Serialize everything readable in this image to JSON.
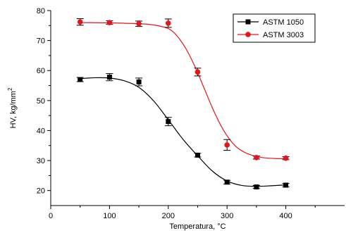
{
  "chart_data": {
    "type": "scatter",
    "title": "",
    "xlabel": "Temperatura, °C",
    "ylabel": "HV, kg/mm",
    "ylabel_superscript": "2",
    "xlim": [
      0,
      500
    ],
    "ylim": [
      15,
      80
    ],
    "xticks": [
      0,
      100,
      200,
      300,
      400
    ],
    "yticks": [
      20,
      30,
      40,
      50,
      60,
      70,
      80
    ],
    "grid": false,
    "legend_position": "top-right",
    "series": [
      {
        "name": "ASTM 1050",
        "color": "#000000",
        "marker": "square",
        "x": [
          50,
          100,
          150,
          200,
          250,
          300,
          350,
          400
        ],
        "y": [
          57.0,
          57.8,
          56.2,
          43.0,
          31.8,
          22.8,
          21.2,
          21.8
        ],
        "err": [
          0.7,
          1.2,
          1.3,
          1.4,
          0.6,
          0.6,
          0.5,
          0.6
        ],
        "fit_x": [
          50,
          75,
          100,
          125,
          150,
          175,
          200,
          225,
          250,
          275,
          300,
          325,
          350,
          375,
          400
        ],
        "fit_y": [
          57.3,
          57.6,
          57.5,
          56.6,
          54.4,
          49.9,
          43.6,
          37.1,
          31.6,
          26.5,
          23.2,
          21.7,
          21.4,
          21.6,
          21.9
        ]
      },
      {
        "name": "ASTM 3003",
        "color": "#e8141c",
        "marker": "circle",
        "x": [
          50,
          100,
          150,
          200,
          250,
          300,
          350,
          400
        ],
        "y": [
          76.2,
          76.0,
          75.6,
          75.8,
          59.5,
          35.2,
          31.0,
          30.8
        ],
        "err": [
          1.1,
          0.6,
          0.9,
          1.4,
          1.3,
          1.8,
          0.5,
          0.5
        ],
        "fit_x": [
          50,
          100,
          150,
          175,
          200,
          215,
          230,
          245,
          260,
          275,
          290,
          305,
          320,
          340,
          360,
          380,
          400
        ],
        "fit_y": [
          76.0,
          75.9,
          75.6,
          75.2,
          74.0,
          71.5,
          67.3,
          61.5,
          54.6,
          47.6,
          41.5,
          36.9,
          33.9,
          31.9,
          31.0,
          30.7,
          30.6
        ]
      }
    ]
  }
}
